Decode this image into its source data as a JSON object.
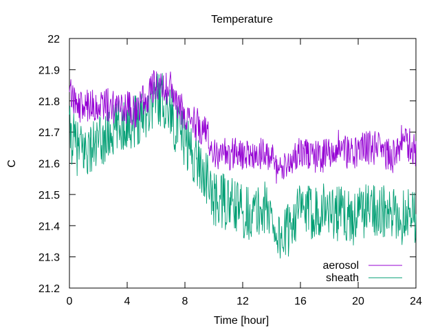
{
  "chart_data": {
    "type": "line",
    "title": "Temperature",
    "xlabel": "Time [hour]",
    "ylabel": "C",
    "xlim": [
      0,
      24
    ],
    "ylim": [
      21.2,
      22.0
    ],
    "xticks": [
      0,
      4,
      8,
      12,
      16,
      20,
      24
    ],
    "yticks": [
      21.2,
      21.3,
      21.4,
      21.5,
      21.6,
      21.7,
      21.8,
      21.9,
      22.0
    ],
    "ytick_labels": [
      "21.2",
      "21.3",
      "21.4",
      "21.5",
      "21.6",
      "21.7",
      "21.8",
      "21.9",
      "22"
    ],
    "grid": false,
    "legend_position": "bottom-right",
    "series": [
      {
        "name": "aerosol",
        "color": "#9400d3",
        "x": [
          0,
          0.5,
          1,
          1.5,
          2,
          2.5,
          3,
          3.5,
          4,
          4.5,
          5,
          5.5,
          6,
          6.5,
          7,
          7.5,
          8,
          8.5,
          9,
          9.5,
          10,
          10.5,
          11,
          11.5,
          12,
          12.5,
          13,
          13.5,
          14,
          14.5,
          15,
          15.5,
          16,
          16.5,
          17,
          17.5,
          18,
          18.5,
          19,
          19.5,
          20,
          20.5,
          21,
          21.5,
          22,
          22.5,
          23,
          23.5,
          24
        ],
        "y": [
          21.85,
          21.79,
          21.78,
          21.79,
          21.77,
          21.79,
          21.78,
          21.78,
          21.78,
          21.76,
          21.8,
          21.82,
          21.86,
          21.84,
          21.84,
          21.78,
          21.76,
          21.73,
          21.72,
          21.7,
          21.64,
          21.63,
          21.63,
          21.64,
          21.63,
          21.62,
          21.63,
          21.63,
          21.62,
          21.57,
          21.58,
          21.62,
          21.65,
          21.63,
          21.62,
          21.62,
          21.63,
          21.66,
          21.64,
          21.63,
          21.64,
          21.65,
          21.65,
          21.65,
          21.63,
          21.62,
          21.67,
          21.66,
          21.64
        ]
      },
      {
        "name": "sheath",
        "color": "#009e73",
        "x": [
          0,
          0.5,
          1,
          1.5,
          2,
          2.5,
          3,
          3.5,
          4,
          4.5,
          5,
          5.5,
          6,
          6.5,
          7,
          7.5,
          8,
          8.5,
          9,
          9.5,
          10,
          10.5,
          11,
          11.5,
          12,
          12.5,
          13,
          13.5,
          14,
          14.5,
          15,
          15.5,
          16,
          16.5,
          17,
          17.5,
          18,
          18.5,
          19,
          19.5,
          20,
          20.5,
          21,
          21.5,
          22,
          22.5,
          23,
          23.5,
          24
        ],
        "y": [
          21.7,
          21.65,
          21.64,
          21.65,
          21.66,
          21.68,
          21.7,
          21.72,
          21.73,
          21.74,
          21.76,
          21.78,
          21.82,
          21.8,
          21.77,
          21.7,
          21.68,
          21.63,
          21.6,
          21.55,
          21.48,
          21.48,
          21.47,
          21.46,
          21.45,
          21.44,
          21.44,
          21.46,
          21.43,
          21.36,
          21.37,
          21.43,
          21.45,
          21.44,
          21.45,
          21.46,
          21.45,
          21.44,
          21.44,
          21.42,
          21.44,
          21.45,
          21.46,
          21.45,
          21.43,
          21.43,
          21.42,
          21.46,
          21.43
        ]
      }
    ]
  }
}
